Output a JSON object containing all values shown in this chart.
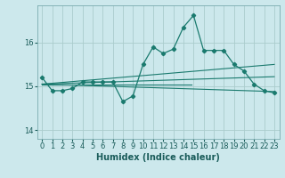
{
  "xlabel": "Humidex (Indice chaleur)",
  "background_color": "#cce8ec",
  "grid_color": "#aacccc",
  "line_color": "#1a7a6e",
  "xlim": [
    -0.5,
    23.5
  ],
  "ylim": [
    13.8,
    16.85
  ],
  "yticks": [
    14,
    15,
    16
  ],
  "xticks": [
    0,
    1,
    2,
    3,
    4,
    5,
    6,
    7,
    8,
    9,
    10,
    11,
    12,
    13,
    14,
    15,
    16,
    17,
    18,
    19,
    20,
    21,
    22,
    23
  ],
  "series": [
    [
      0,
      15.2
    ],
    [
      1,
      14.9
    ],
    [
      2,
      14.9
    ],
    [
      3,
      14.95
    ],
    [
      4,
      15.1
    ],
    [
      5,
      15.1
    ],
    [
      6,
      15.1
    ],
    [
      7,
      15.1
    ],
    [
      8,
      14.65
    ],
    [
      9,
      14.78
    ],
    [
      10,
      15.5
    ],
    [
      11,
      15.9
    ],
    [
      12,
      15.75
    ],
    [
      13,
      15.85
    ],
    [
      14,
      16.35
    ],
    [
      15,
      16.62
    ],
    [
      16,
      15.82
    ],
    [
      17,
      15.82
    ],
    [
      18,
      15.82
    ],
    [
      19,
      15.5
    ],
    [
      20,
      15.35
    ],
    [
      21,
      15.05
    ],
    [
      22,
      14.9
    ],
    [
      23,
      14.85
    ]
  ],
  "trend_lines": [
    [
      [
        0,
        15.05
      ],
      [
        23,
        15.5
      ]
    ],
    [
      [
        0,
        15.05
      ],
      [
        23,
        15.22
      ]
    ],
    [
      [
        0,
        15.05
      ],
      [
        14.8,
        15.05
      ]
    ],
    [
      [
        0,
        15.05
      ],
      [
        23,
        14.88
      ]
    ]
  ],
  "tick_fontsize": 6.0,
  "label_fontsize": 7.0
}
